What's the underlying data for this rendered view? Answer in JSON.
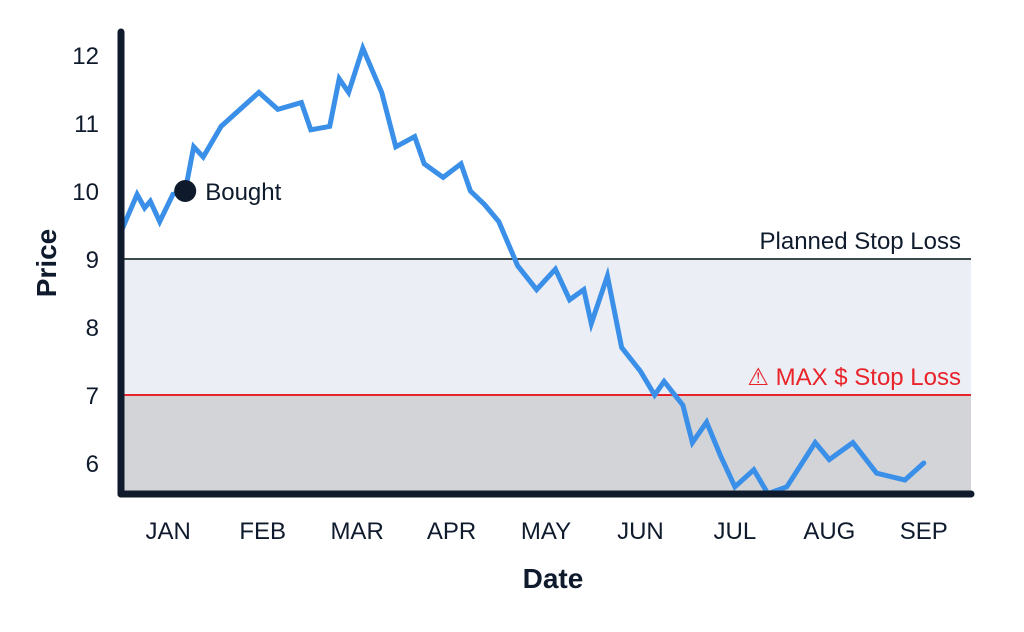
{
  "colors": {
    "line": "#3a8fe8",
    "axis": "#0f1b2d",
    "planned_band": "#eceef5",
    "max_band": "#d2d4d8",
    "planned_line": "#3b4a4a",
    "max_line": "#e8232a",
    "marker": "#0f1b2d"
  },
  "chart_data": {
    "type": "line",
    "title": "",
    "xlabel": "Date",
    "ylabel": "Price",
    "ylim": [
      5.5,
      12.8
    ],
    "yticks": [
      6,
      7,
      8,
      9,
      10,
      11,
      12
    ],
    "xticks": [
      {
        "label": "JAN",
        "x": 0.5
      },
      {
        "label": "FEB",
        "x": 1.5
      },
      {
        "label": "MAR",
        "x": 2.5
      },
      {
        "label": "APR",
        "x": 3.5
      },
      {
        "label": "MAY",
        "x": 4.5
      },
      {
        "label": "JUN",
        "x": 5.5
      },
      {
        "label": "JUL",
        "x": 6.5
      },
      {
        "label": "AUG",
        "x": 7.5
      },
      {
        "label": "SEP",
        "x": 8.5
      }
    ],
    "xlim": [
      0,
      9
    ],
    "series": [
      {
        "values": [
          [
            0.0,
            9.4
          ],
          [
            0.17,
            9.95
          ],
          [
            0.25,
            9.75
          ],
          [
            0.31,
            9.85
          ],
          [
            0.41,
            9.55
          ],
          [
            0.55,
            9.95
          ],
          [
            0.68,
            10.0
          ],
          [
            0.77,
            10.65
          ],
          [
            0.87,
            10.5
          ],
          [
            1.06,
            10.95
          ],
          [
            1.26,
            11.2
          ],
          [
            1.46,
            11.45
          ],
          [
            1.66,
            11.2
          ],
          [
            1.91,
            11.3
          ],
          [
            2.01,
            10.9
          ],
          [
            2.21,
            10.95
          ],
          [
            2.31,
            11.65
          ],
          [
            2.41,
            11.45
          ],
          [
            2.56,
            12.1
          ],
          [
            2.76,
            11.45
          ],
          [
            2.91,
            10.65
          ],
          [
            3.11,
            10.8
          ],
          [
            3.21,
            10.4
          ],
          [
            3.41,
            10.2
          ],
          [
            3.6,
            10.4
          ],
          [
            3.7,
            10.0
          ],
          [
            3.85,
            9.8
          ],
          [
            4.0,
            9.55
          ],
          [
            4.2,
            8.9
          ],
          [
            4.4,
            8.55
          ],
          [
            4.6,
            8.85
          ],
          [
            4.75,
            8.4
          ],
          [
            4.9,
            8.55
          ],
          [
            4.98,
            8.05
          ],
          [
            5.15,
            8.75
          ],
          [
            5.3,
            7.7
          ],
          [
            5.5,
            7.35
          ],
          [
            5.65,
            7.0
          ],
          [
            5.75,
            7.2
          ],
          [
            5.95,
            6.85
          ],
          [
            6.05,
            6.3
          ],
          [
            6.2,
            6.6
          ],
          [
            6.35,
            6.1
          ],
          [
            6.5,
            5.65
          ],
          [
            6.7,
            5.9
          ],
          [
            6.85,
            5.55
          ],
          [
            7.05,
            5.65
          ],
          [
            7.35,
            6.3
          ],
          [
            7.5,
            6.05
          ],
          [
            7.75,
            6.3
          ],
          [
            8.0,
            5.85
          ],
          [
            8.3,
            5.75
          ],
          [
            8.5,
            6.0
          ]
        ]
      }
    ],
    "annotations": {
      "bought": {
        "label": "Bought",
        "x": 0.68,
        "y": 10.0
      },
      "planned_stop": {
        "label": "Planned Stop Loss",
        "y": 9
      },
      "max_stop": {
        "label": "⚠ MAX $ Stop Loss",
        "y": 7
      }
    },
    "grid": false,
    "legend": "none"
  }
}
